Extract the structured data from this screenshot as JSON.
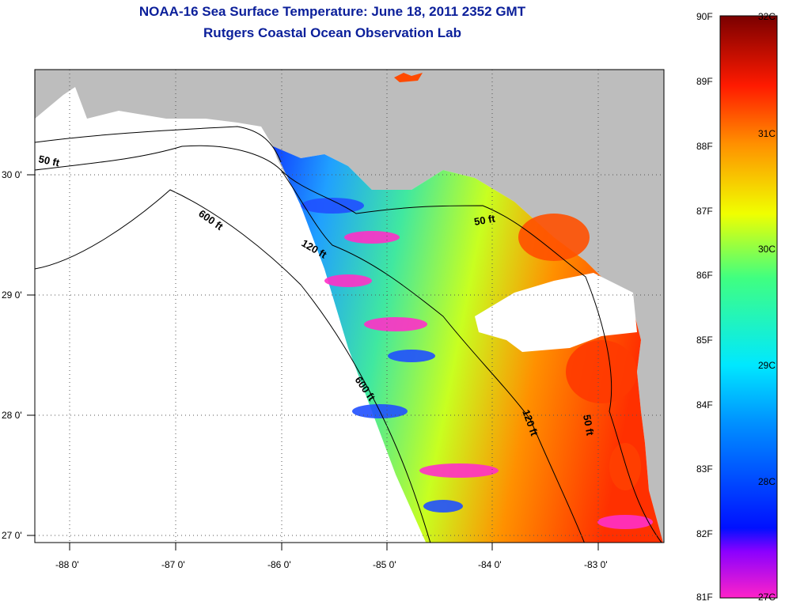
{
  "title": {
    "line1": "NOAA-16 Sea Surface Temperature:  June 18, 2011 2352 GMT",
    "line2": "Rutgers Coastal Ocean Observation Lab"
  },
  "map": {
    "lat_labels": [
      "30 0'",
      "29 0'",
      "28 0'",
      "27 0'"
    ],
    "lon_labels": [
      "-88 0'",
      "-87 0'",
      "-86 0'",
      "-85 0'",
      "-84 0'",
      "-83 0'"
    ],
    "contour_labels": [
      "50 ft",
      "600 ft",
      "120 ft",
      "50 ft",
      "600 ft",
      "120 ft",
      "50 ft"
    ],
    "colors": {
      "land": "#bdbdbd",
      "no_data": "#ffffff",
      "frame": "#000000"
    }
  },
  "colorbar": {
    "fahrenheit_labels": [
      "90F",
      "89F",
      "88F",
      "87F",
      "86F",
      "85F",
      "84F",
      "83F",
      "82F",
      "81F"
    ],
    "celsius_labels": [
      "32C",
      "31C",
      "30C",
      "29C",
      "28C",
      "27C"
    ],
    "gradient": [
      "#ff22c8",
      "#6a00ff",
      "#0020ff",
      "#00c8ff",
      "#40ff80",
      "#f0ff00",
      "#ff9000",
      "#ff1a00",
      "#7a0000"
    ]
  }
}
